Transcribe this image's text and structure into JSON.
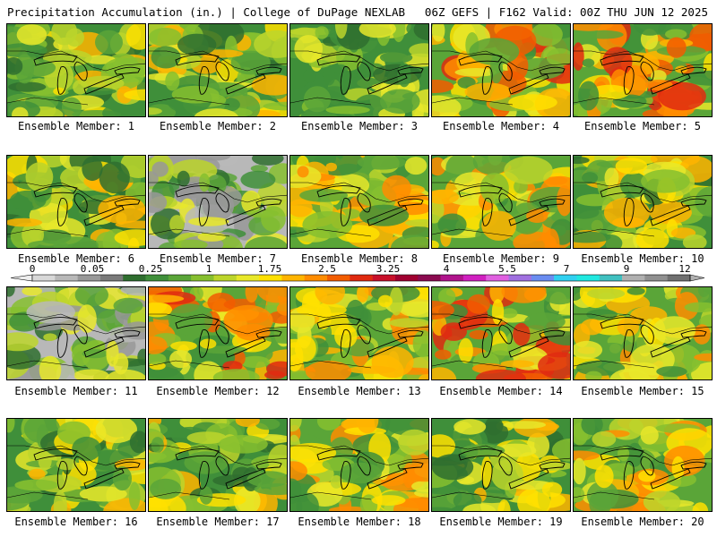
{
  "header": {
    "left": "Precipitation Accumulation (in.) | College of DuPage NEXLAB",
    "right": "06Z GEFS | F162 Valid: 00Z THU JUN 12 2025"
  },
  "panels": [
    {
      "label": "Ensemble Member: 1",
      "scheme": "green-yellow",
      "seed": 1
    },
    {
      "label": "Ensemble Member: 2",
      "scheme": "green-yellow",
      "seed": 2
    },
    {
      "label": "Ensemble Member: 3",
      "scheme": "green",
      "seed": 3
    },
    {
      "label": "Ensemble Member: 4",
      "scheme": "red-heavy",
      "seed": 4
    },
    {
      "label": "Ensemble Member: 5",
      "scheme": "red-heavy",
      "seed": 5
    },
    {
      "label": "Ensemble Member: 6",
      "scheme": "green-yellow",
      "seed": 6
    },
    {
      "label": "Ensemble Member: 7",
      "scheme": "green-gray",
      "seed": 7
    },
    {
      "label": "Ensemble Member: 8",
      "scheme": "yellow-heavy",
      "seed": 8
    },
    {
      "label": "Ensemble Member: 9",
      "scheme": "yellow-heavy",
      "seed": 9
    },
    {
      "label": "Ensemble Member: 10",
      "scheme": "green-yellow",
      "seed": 10
    },
    {
      "label": "Ensemble Member: 11",
      "scheme": "green-gray",
      "seed": 11
    },
    {
      "label": "Ensemble Member: 12",
      "scheme": "red-heavy",
      "seed": 12
    },
    {
      "label": "Ensemble Member: 13",
      "scheme": "yellow-heavy",
      "seed": 13
    },
    {
      "label": "Ensemble Member: 14",
      "scheme": "red-heavy",
      "seed": 14
    },
    {
      "label": "Ensemble Member: 15",
      "scheme": "yellow-heavy",
      "seed": 15
    },
    {
      "label": "Ensemble Member: 16",
      "scheme": "green-yellow",
      "seed": 16
    },
    {
      "label": "Ensemble Member: 17",
      "scheme": "green-yellow",
      "seed": 17
    },
    {
      "label": "Ensemble Member: 18",
      "scheme": "yellow-heavy",
      "seed": 18
    },
    {
      "label": "Ensemble Member: 19",
      "scheme": "green-yellow",
      "seed": 19
    },
    {
      "label": "Ensemble Member: 20",
      "scheme": "yellow-heavy",
      "seed": 20
    }
  ],
  "colorbar": {
    "tick_labels": [
      "0",
      "0.05",
      "0.25",
      "1",
      "1.75",
      "2.5",
      "3.25",
      "4",
      "5.5",
      "7",
      "9",
      "12"
    ],
    "colors": [
      "#d8d8d8",
      "#b8b8b8",
      "#989898",
      "#7a7a7a",
      "#2f6e2f",
      "#3f8f3a",
      "#5aa538",
      "#86bf2f",
      "#bcd52b",
      "#e8e82a",
      "#ffe000",
      "#ffb400",
      "#ff8c00",
      "#f25c00",
      "#e02a10",
      "#c8102a",
      "#a00030",
      "#8b0a50",
      "#b0148c",
      "#d020c0",
      "#e060e0",
      "#a070e0",
      "#6a8cf0",
      "#30d0f0",
      "#20e8e0",
      "#40c0c0",
      "#b0b0b0",
      "#909090",
      "#707070"
    ]
  }
}
